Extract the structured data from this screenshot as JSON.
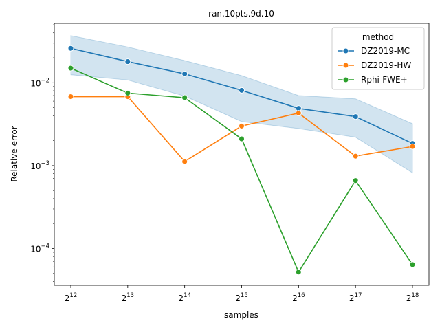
{
  "chart_data": {
    "type": "line",
    "title": "ran.10pts.9d.10",
    "xlabel": "samples",
    "ylabel": "Relative error",
    "x_scale": "log2",
    "y_scale": "log10",
    "x": [
      4096,
      8192,
      16384,
      32768,
      65536,
      131072,
      262144
    ],
    "x_tick_labels": [
      {
        "base": "2",
        "exp": "12"
      },
      {
        "base": "2",
        "exp": "13"
      },
      {
        "base": "2",
        "exp": "14"
      },
      {
        "base": "2",
        "exp": "15"
      },
      {
        "base": "2",
        "exp": "16"
      },
      {
        "base": "2",
        "exp": "17"
      },
      {
        "base": "2",
        "exp": "18"
      }
    ],
    "y_ticks": [
      {
        "value": 0.0001,
        "base": "10",
        "exp": "−4"
      },
      {
        "value": 0.001,
        "base": "10",
        "exp": "−3"
      },
      {
        "value": 0.01,
        "base": "10",
        "exp": "−2"
      }
    ],
    "ylim": [
      3.6e-05,
      0.052
    ],
    "legend": {
      "title": "method",
      "placement": "top-right"
    },
    "series": [
      {
        "name": "DZ2019-MC",
        "color": "#1f77b4",
        "values": [
          0.026,
          0.018,
          0.0128,
          0.0081,
          0.0049,
          0.0039,
          0.00185
        ],
        "band_low": [
          0.0125,
          0.0108,
          0.0069,
          0.0034,
          0.0028,
          0.0022,
          0.00082
        ],
        "band_high": [
          0.037,
          0.027,
          0.0185,
          0.0122,
          0.007,
          0.0064,
          0.0032
        ]
      },
      {
        "name": "DZ2019-HW",
        "color": "#ff7f0e",
        "values": [
          0.0068,
          0.0068,
          0.00112,
          0.003,
          0.0043,
          0.0013,
          0.0017
        ]
      },
      {
        "name": "Rphi-FWE+",
        "color": "#2ca02c",
        "values": [
          0.015,
          0.0075,
          0.0066,
          0.0021,
          5.2e-05,
          0.00066,
          6.4e-05
        ]
      }
    ]
  }
}
